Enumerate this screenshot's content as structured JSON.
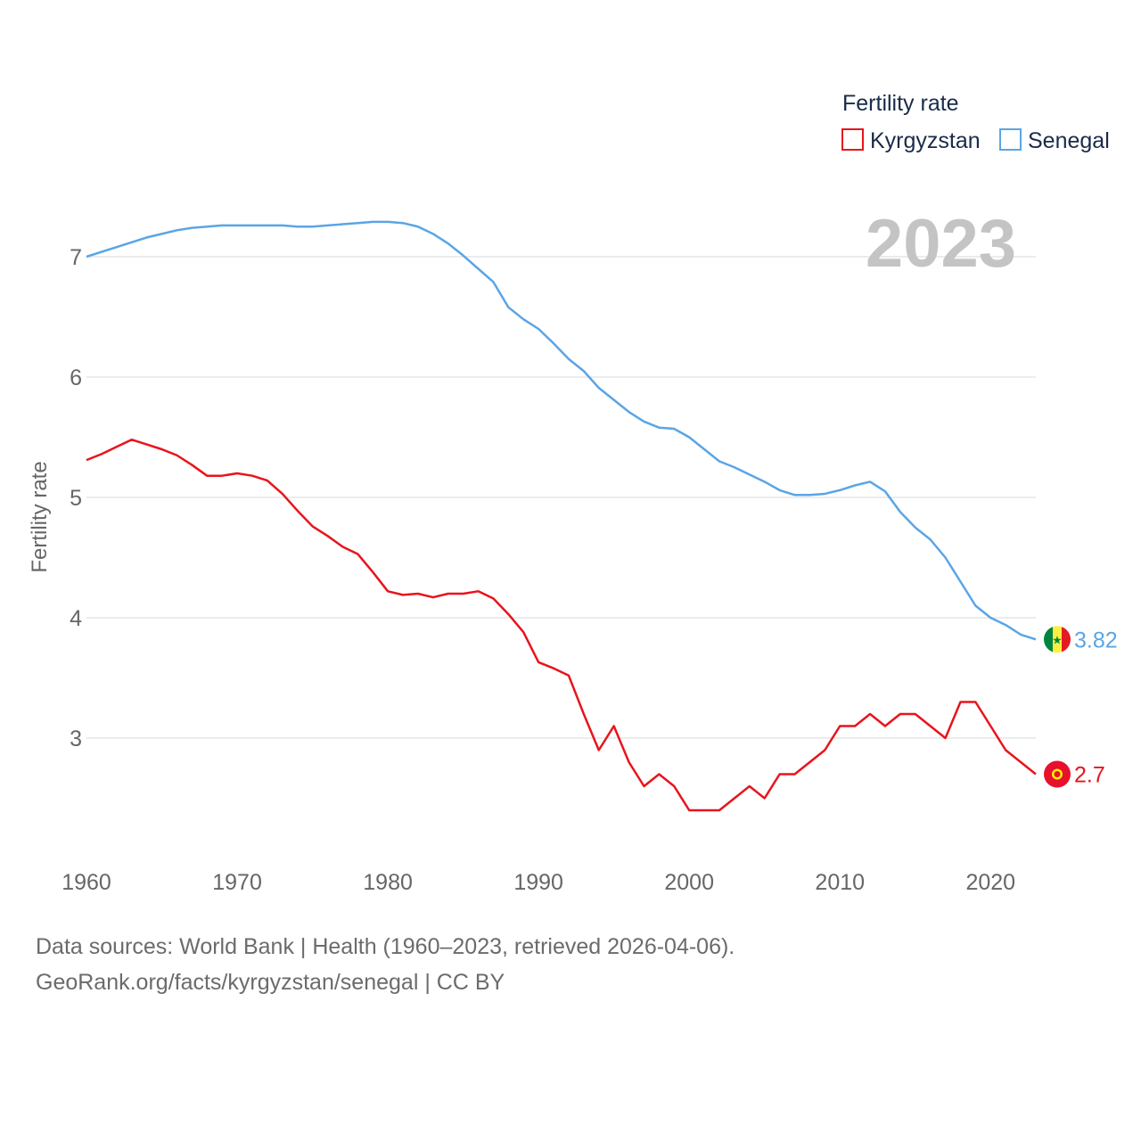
{
  "chart_data": {
    "type": "line",
    "title": "",
    "ylabel": "Fertility rate",
    "xlabel": "",
    "year_badge": "2023",
    "legend_title": "Fertility rate",
    "xlim": [
      1960,
      2023
    ],
    "ylim": [
      2.0,
      7.5
    ],
    "yticks": [
      3,
      4,
      5,
      6,
      7
    ],
    "xticks": [
      1960,
      1970,
      1980,
      1990,
      2000,
      2010,
      2020
    ],
    "x": [
      1960,
      1961,
      1962,
      1963,
      1964,
      1965,
      1966,
      1967,
      1968,
      1969,
      1970,
      1971,
      1972,
      1973,
      1974,
      1975,
      1976,
      1977,
      1978,
      1979,
      1980,
      1981,
      1982,
      1983,
      1984,
      1985,
      1986,
      1987,
      1988,
      1989,
      1990,
      1991,
      1992,
      1993,
      1994,
      1995,
      1996,
      1997,
      1998,
      1999,
      2000,
      2001,
      2002,
      2003,
      2004,
      2005,
      2006,
      2007,
      2008,
      2009,
      2010,
      2011,
      2012,
      2013,
      2014,
      2015,
      2016,
      2017,
      2018,
      2019,
      2020,
      2021,
      2022,
      2023
    ],
    "series": [
      {
        "name": "Kyrgyzstan",
        "color": "#e8141c",
        "end_label": "2.7",
        "flag": "kyrgyzstan-flag",
        "values": [
          5.31,
          5.36,
          5.42,
          5.48,
          5.44,
          5.4,
          5.35,
          5.27,
          5.18,
          5.18,
          5.2,
          5.18,
          5.14,
          5.03,
          4.89,
          4.76,
          4.68,
          4.59,
          4.53,
          4.38,
          4.22,
          4.19,
          4.2,
          4.17,
          4.2,
          4.2,
          4.22,
          4.16,
          4.03,
          3.88,
          3.63,
          3.58,
          3.52,
          3.2,
          2.9,
          3.1,
          2.8,
          2.6,
          2.7,
          2.6,
          2.4,
          2.4,
          2.4,
          2.5,
          2.6,
          2.5,
          2.7,
          2.7,
          2.8,
          2.9,
          3.1,
          3.1,
          3.2,
          3.1,
          3.2,
          3.2,
          3.1,
          3.0,
          3.3,
          3.3,
          3.1,
          2.9,
          2.8,
          2.7
        ]
      },
      {
        "name": "Senegal",
        "color": "#5aa5e6",
        "end_label": "3.82",
        "flag": "senegal-flag",
        "values": [
          7.0,
          7.04,
          7.08,
          7.12,
          7.16,
          7.19,
          7.22,
          7.24,
          7.25,
          7.26,
          7.26,
          7.26,
          7.26,
          7.26,
          7.25,
          7.25,
          7.26,
          7.27,
          7.28,
          7.29,
          7.29,
          7.28,
          7.25,
          7.19,
          7.11,
          7.01,
          6.9,
          6.79,
          6.58,
          6.48,
          6.4,
          6.28,
          6.15,
          6.05,
          5.91,
          5.81,
          5.71,
          5.63,
          5.58,
          5.57,
          5.5,
          5.4,
          5.3,
          5.25,
          5.19,
          5.13,
          5.06,
          5.02,
          5.02,
          5.03,
          5.06,
          5.1,
          5.13,
          5.05,
          4.88,
          4.75,
          4.65,
          4.5,
          4.3,
          4.1,
          4.0,
          3.94,
          3.86,
          3.82
        ]
      }
    ]
  },
  "footer": {
    "line1": "Data sources: World Bank | Health (1960–2023, retrieved 2026-04-06).",
    "line2": "GeoRank.org/facts/kyrgyzstan/senegal | CC BY"
  }
}
